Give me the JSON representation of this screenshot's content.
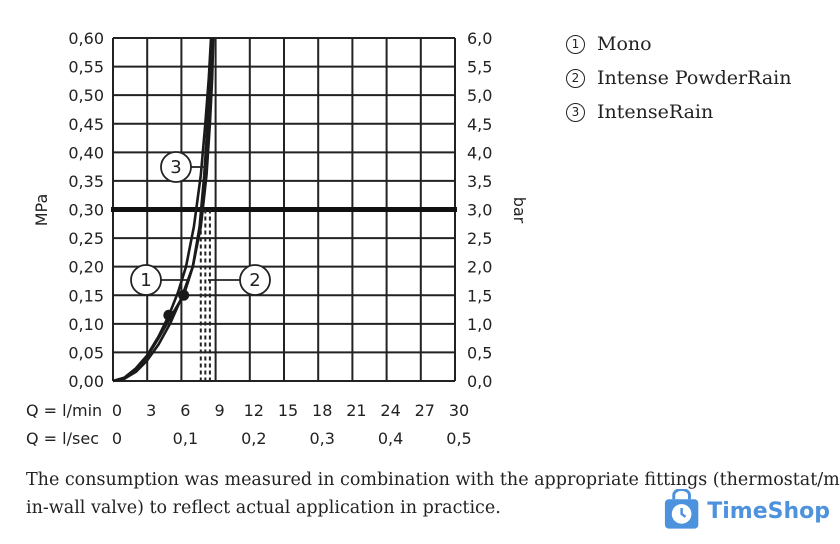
{
  "chart_data": {
    "type": "line",
    "title": "",
    "xlabel_rows": [
      {
        "label": "Q = l/min",
        "ticks": [
          "0",
          "3",
          "6",
          "9",
          "12",
          "15",
          "18",
          "21",
          "24",
          "27",
          "30"
        ]
      },
      {
        "label": "Q = l/sec",
        "ticks": [
          "0",
          "0,1",
          "0,2",
          "0,3",
          "0,4",
          "0,5"
        ]
      }
    ],
    "ylabel_left": "MPa",
    "ylabel_right": "bar",
    "y_ticks_left": [
      "0,00",
      "0,05",
      "0,10",
      "0,15",
      "0,20",
      "0,25",
      "0,30",
      "0,35",
      "0,40",
      "0,45",
      "0,50",
      "0,55",
      "0,60"
    ],
    "y_ticks_right": [
      "0,0",
      "0,5",
      "1,0",
      "1,5",
      "2,0",
      "2,5",
      "3,0",
      "3,5",
      "4,0",
      "4,5",
      "5,0",
      "5,5",
      "6,0"
    ],
    "xlim": [
      0,
      30
    ],
    "ylim": [
      0,
      0.6
    ],
    "grid": true,
    "reference_line": {
      "y": 0.3
    },
    "series": [
      {
        "marker": "1",
        "x": [
          0,
          1,
          2,
          3,
          4,
          4.9,
          5.7,
          6.4,
          7.1,
          7.7,
          8.1,
          8.4,
          8.6
        ],
        "y": [
          0,
          0.006,
          0.022,
          0.045,
          0.078,
          0.115,
          0.155,
          0.2,
          0.27,
          0.36,
          0.45,
          0.53,
          0.6
        ],
        "dot": {
          "x": 4.9,
          "y": 0.115
        },
        "vline_x": 7.7
      },
      {
        "marker": "2",
        "x": [
          0,
          1,
          2,
          3,
          4,
          5,
          6.2,
          7.0,
          7.6,
          8.0,
          8.3,
          8.5,
          8.7
        ],
        "y": [
          0,
          0.005,
          0.02,
          0.043,
          0.075,
          0.11,
          0.15,
          0.2,
          0.27,
          0.36,
          0.45,
          0.53,
          0.6
        ],
        "dot": {
          "x": 6.2,
          "y": 0.15
        },
        "vline_x": 8.1
      },
      {
        "marker": "3",
        "x": [
          0,
          1,
          2,
          3,
          4,
          5,
          6,
          7,
          7.7,
          8.2,
          8.5,
          8.7,
          8.8
        ],
        "y": [
          0,
          0.004,
          0.016,
          0.036,
          0.064,
          0.1,
          0.145,
          0.2,
          0.27,
          0.36,
          0.45,
          0.53,
          0.6
        ],
        "dot": null,
        "vline_x": 8.5
      }
    ]
  },
  "legend": [
    {
      "num": "1",
      "name": "Mono"
    },
    {
      "num": "2",
      "name": "Intense PowderRain"
    },
    {
      "num": "3",
      "name": "IntenseRain"
    }
  ],
  "footnote": {
    "line1": "The consumption was measured in combination with the appropriate fittings (thermostat/mixer/",
    "line2": "in-wall valve) to reflect actual application in practice."
  },
  "watermark": {
    "text": "TimeShop",
    "color": "#2f7fd6"
  }
}
